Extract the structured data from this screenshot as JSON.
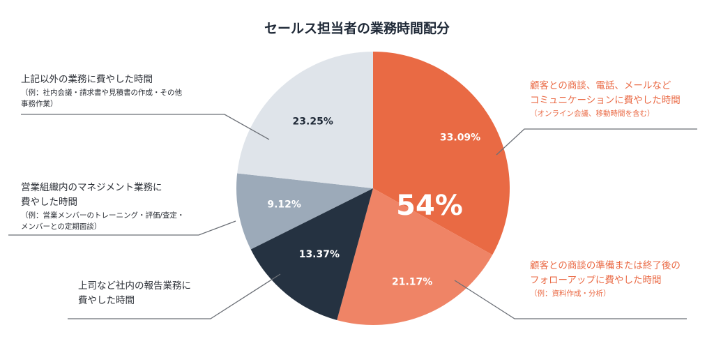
{
  "chart_data": {
    "type": "pie",
    "title": "セールス担当者の業務時間配分",
    "start_angle_deg": 0,
    "direction": "clockwise",
    "slices": [
      {
        "value": 33.09,
        "label": "33.09%",
        "color": "#e96a44",
        "label_color": "#ffffff",
        "text_lines": [
          "顧客との商談、電話、メールなど",
          "コミュニケーションに費やした時間"
        ],
        "sub_lines": [
          "（オンライン会議、移動時間を含む）"
        ]
      },
      {
        "value": 21.17,
        "label": "21.17%",
        "color": "#ef8466",
        "label_color": "#ffffff",
        "text_lines": [
          "顧客との商談の準備または終了後の",
          "フォローアップに費やした時間"
        ],
        "sub_lines": [
          "（例：資料作成・分析）"
        ]
      },
      {
        "value": 13.37,
        "label": "13.37%",
        "color": "#253241",
        "label_color": "#ffffff",
        "text_lines": [
          "上司など社内の報告業務に",
          "費やした時間"
        ],
        "sub_lines": []
      },
      {
        "value": 9.12,
        "label": "9.12%",
        "color": "#9caab9",
        "label_color": "#ffffff",
        "text_lines": [
          "営業組織内のマネジメント業務に",
          "費やした時間"
        ],
        "sub_lines": [
          "（例：営業メンバーのトレーニング・評価/査定・",
          "メンバーとの定期面談）"
        ]
      },
      {
        "value": 23.25,
        "label": "23.25%",
        "color": "#dfe4ea",
        "label_color": "#1f2937",
        "text_lines": [
          "上記以外の業務に費やした時間"
        ],
        "sub_lines": [
          "（例：社内会議・請求書や見積書の作成・その他",
          "事務作業）"
        ]
      }
    ],
    "highlight": {
      "text": "54%",
      "color": "#ffffff"
    }
  }
}
